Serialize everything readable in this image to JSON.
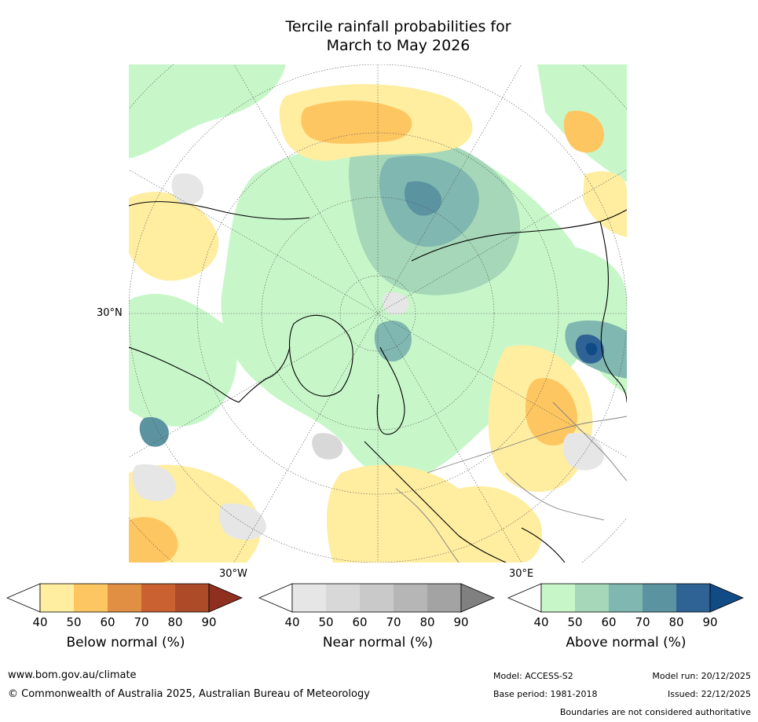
{
  "chart_data": {
    "type": "heatmap",
    "title_line1": "Tercile rainfall probabilities for",
    "title_line2": "March to May 2026",
    "projection": "north polar stereographic",
    "lat_label": "30°N",
    "lon_labels": {
      "west": "30°W",
      "east": "30°E"
    },
    "colorbars": [
      {
        "name": "Below normal (%)",
        "ticks": [
          "40",
          "50",
          "60",
          "70",
          "80",
          "90"
        ],
        "colors": [
          "#ffffff",
          "#ffeda0",
          "#fec661",
          "#e08f43",
          "#c96230",
          "#ad4a28",
          "#8f2f1f"
        ]
      },
      {
        "name": "Near normal (%)",
        "ticks": [
          "40",
          "50",
          "60",
          "70",
          "80",
          "90"
        ],
        "colors": [
          "#ffffff",
          "#e6e6e6",
          "#d8d8d8",
          "#c9c9c9",
          "#b6b6b6",
          "#a3a3a3",
          "#808080"
        ]
      },
      {
        "name": "Above normal (%)",
        "ticks": [
          "40",
          "50",
          "60",
          "70",
          "80",
          "90"
        ],
        "colors": [
          "#ffffff",
          "#c7f7c9",
          "#a5d7b8",
          "#80b7b0",
          "#5b93a0",
          "#306395",
          "#104b86"
        ]
      }
    ]
  },
  "footer": {
    "website": "www.bom.gov.au/climate",
    "copyright": "© Commonwealth of Australia 2025, Australian Bureau of Meteorology",
    "model": "Model: ACCESS-S2",
    "base_period": "Base period: 1981-2018",
    "model_run": "Model run: 20/12/2025",
    "issued": "Issued: 22/12/2025",
    "disclaimer": "Boundaries are not considered authoritative"
  }
}
